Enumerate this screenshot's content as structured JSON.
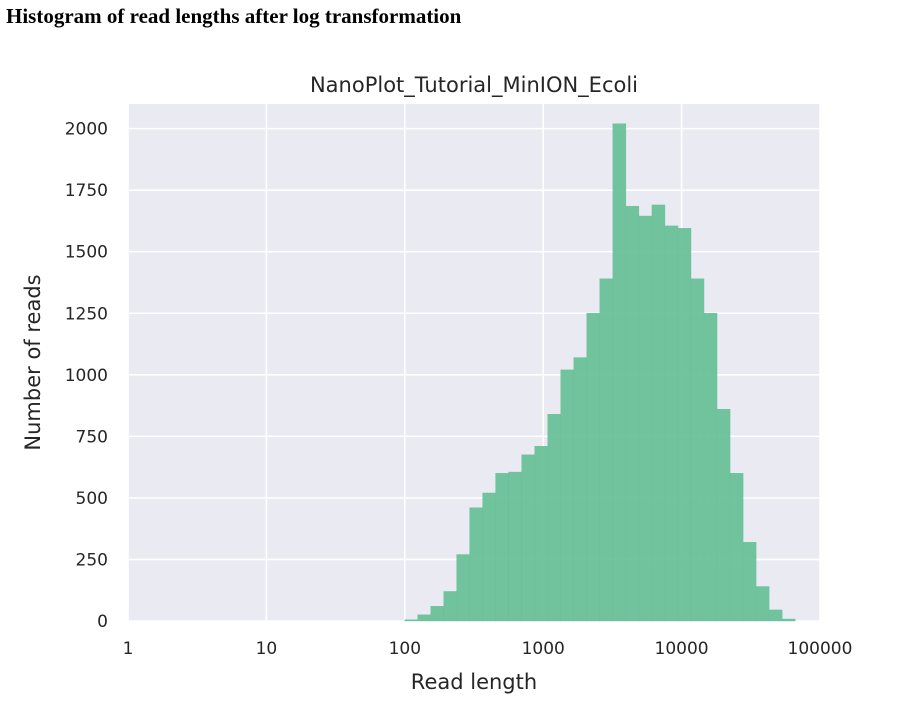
{
  "heading": "Histogram of read lengths after log transformation",
  "chart_data": {
    "type": "bar",
    "title": "NanoPlot_Tutorial_MinION_Ecoli",
    "xlabel": "Read length",
    "ylabel": "Number of reads",
    "x_scale": "log10",
    "xlim": [
      1,
      100000
    ],
    "ylim": [
      0,
      2100
    ],
    "x_ticks": [
      "1",
      "10",
      "100",
      "1000",
      "10000",
      "100000"
    ],
    "x_tick_values": [
      1,
      10,
      100,
      1000,
      10000,
      100000
    ],
    "y_ticks": [
      "0",
      "250",
      "500",
      "750",
      "1000",
      "1250",
      "1500",
      "1750",
      "2000"
    ],
    "y_tick_values": [
      0,
      250,
      500,
      750,
      1000,
      1250,
      1500,
      1750,
      2000
    ],
    "grid": true,
    "colors": {
      "bar": "#66bf97",
      "background": "#eaeaf2",
      "grid": "#ffffff"
    },
    "bins": [
      {
        "x0": 100,
        "x1": 124,
        "count": 5
      },
      {
        "x0": 124,
        "x1": 154,
        "count": 25
      },
      {
        "x0": 154,
        "x1": 191,
        "count": 60
      },
      {
        "x0": 191,
        "x1": 237,
        "count": 120
      },
      {
        "x0": 237,
        "x1": 294,
        "count": 270
      },
      {
        "x0": 294,
        "x1": 365,
        "count": 460
      },
      {
        "x0": 365,
        "x1": 453,
        "count": 520
      },
      {
        "x0": 453,
        "x1": 563,
        "count": 600
      },
      {
        "x0": 563,
        "x1": 699,
        "count": 605
      },
      {
        "x0": 699,
        "x1": 868,
        "count": 675
      },
      {
        "x0": 868,
        "x1": 1078,
        "count": 710
      },
      {
        "x0": 1078,
        "x1": 1339,
        "count": 840
      },
      {
        "x0": 1339,
        "x1": 1663,
        "count": 1020
      },
      {
        "x0": 1663,
        "x1": 2065,
        "count": 1070
      },
      {
        "x0": 2065,
        "x1": 2565,
        "count": 1250
      },
      {
        "x0": 2565,
        "x1": 3186,
        "count": 1390
      },
      {
        "x0": 3186,
        "x1": 3957,
        "count": 2020
      },
      {
        "x0": 3957,
        "x1": 4914,
        "count": 1685
      },
      {
        "x0": 4914,
        "x1": 6103,
        "count": 1645
      },
      {
        "x0": 6103,
        "x1": 7580,
        "count": 1690
      },
      {
        "x0": 7580,
        "x1": 9414,
        "count": 1605
      },
      {
        "x0": 9414,
        "x1": 11692,
        "count": 1595
      },
      {
        "x0": 11692,
        "x1": 14521,
        "count": 1390
      },
      {
        "x0": 14521,
        "x1": 18034,
        "count": 1250
      },
      {
        "x0": 18034,
        "x1": 22397,
        "count": 860
      },
      {
        "x0": 22397,
        "x1": 27817,
        "count": 600
      },
      {
        "x0": 27817,
        "x1": 34548,
        "count": 320
      },
      {
        "x0": 34548,
        "x1": 42906,
        "count": 140
      },
      {
        "x0": 42906,
        "x1": 53288,
        "count": 45
      },
      {
        "x0": 53288,
        "x1": 66181,
        "count": 8
      }
    ]
  }
}
